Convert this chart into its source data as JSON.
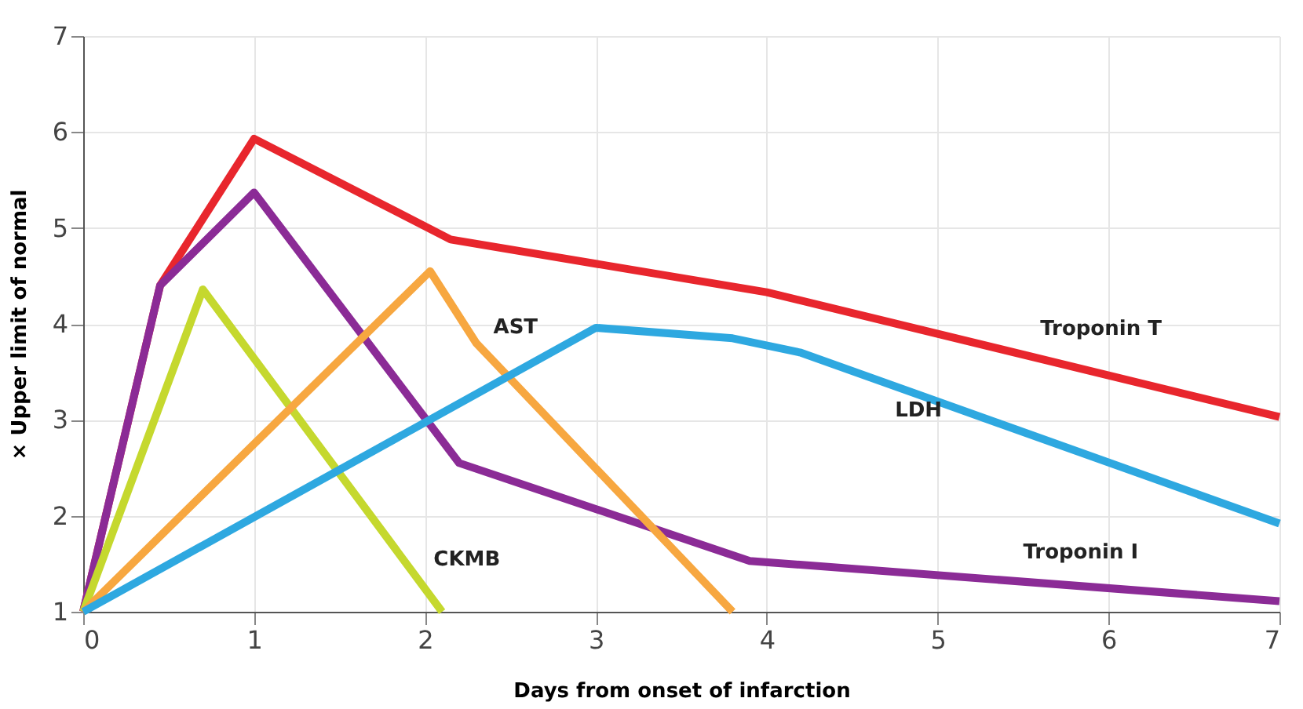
{
  "chart_data": {
    "type": "line",
    "xlabel": "Days from onset of infarction",
    "ylabel": "× Upper limit of normal",
    "xlim": [
      0,
      7
    ],
    "ylim": [
      1,
      7
    ],
    "xticks": [
      0,
      1,
      2,
      3,
      4,
      5,
      6,
      7
    ],
    "yticks": [
      1,
      2,
      3,
      4,
      5,
      6,
      7
    ],
    "grid": true,
    "marker": "none",
    "line_style": "solid",
    "series": [
      {
        "name": "Troponin T",
        "color": "#e8262d",
        "x": [
          0,
          0.45,
          1,
          2.15,
          4,
          7
        ],
        "values": [
          1,
          4.4,
          5.93,
          4.88,
          4.33,
          3.03
        ]
      },
      {
        "name": "Troponin I",
        "color": "#8b2b96",
        "x": [
          0,
          0.45,
          1,
          2.2,
          3.9,
          7
        ],
        "values": [
          1,
          4.4,
          5.37,
          2.55,
          1.53,
          1.11
        ]
      },
      {
        "name": "CKMB",
        "color": "#c5d82e",
        "x": [
          0,
          0.7,
          2.1
        ],
        "values": [
          1,
          4.36,
          1
        ]
      },
      {
        "name": "AST",
        "color": "#f7a740",
        "x": [
          0,
          2.03,
          2.3,
          3.8
        ],
        "values": [
          1,
          4.55,
          3.8,
          1
        ]
      },
      {
        "name": "LDH",
        "color": "#2ea8e0",
        "x": [
          0,
          3,
          3.8,
          4.2,
          7
        ],
        "values": [
          1,
          3.96,
          3.85,
          3.7,
          1.92
        ]
      }
    ]
  }
}
